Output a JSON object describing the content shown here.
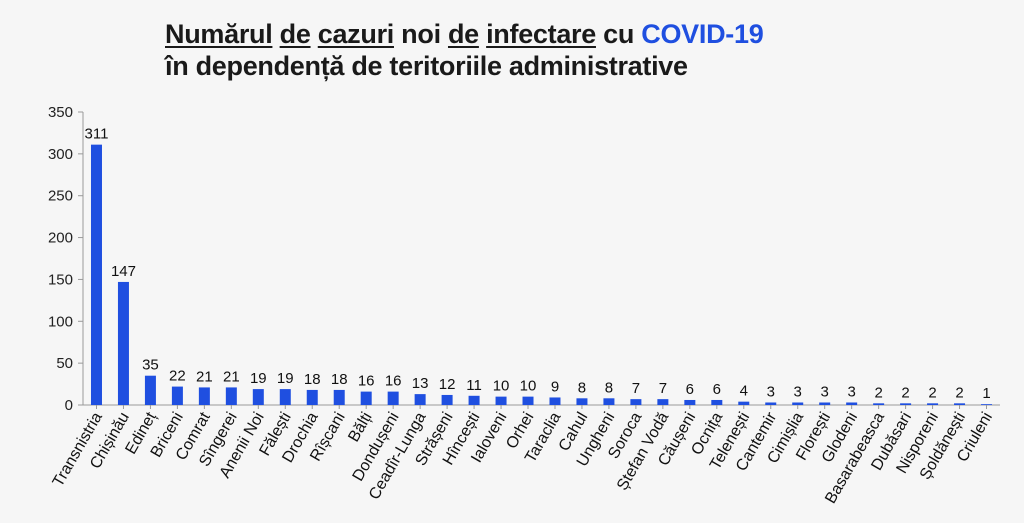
{
  "chart_data": {
    "type": "bar",
    "title_line1_plain1": "",
    "title_line1_u1": "Numărul",
    "title_line1_sp1": " ",
    "title_line1_u2": "de",
    "title_line1_sp2": " ",
    "title_line1_u3": "cazuri",
    "title_line1_sp3": " noi ",
    "title_line1_u4": "de",
    "title_line1_sp4": " ",
    "title_line1_u5": "infectare",
    "title_line1_sp5": " cu ",
    "title_line1_hl": "COVID-19",
    "title_line2": "în dependență de teritoriile administrative",
    "ylim": [
      0,
      350
    ],
    "yticks": [
      0,
      50,
      100,
      150,
      200,
      250,
      300,
      350
    ],
    "grid": false,
    "categories": [
      "Transnistria",
      "Chișinău",
      "Edineț",
      "Briceni",
      "Comrat",
      "Sîngerei",
      "Anenii Noi",
      "Fălești",
      "Drochia",
      "Rîșcani",
      "Bălți",
      "Dondușeni",
      "Ceadîr-Lunga",
      "Strășeni",
      "Hîncești",
      "Ialoveni",
      "Orhei",
      "Taraclia",
      "Cahul",
      "Ungheni",
      "Soroca",
      "Ștefan Vodă",
      "Căușeni",
      "Ocnița",
      "Telenești",
      "Cantemir",
      "Cimișlia",
      "Florești",
      "Glodeni",
      "Basarabeasca",
      "Dubăsari",
      "Nisporeni",
      "Șoldănești",
      "Criuleni"
    ],
    "values": [
      311,
      147,
      35,
      22,
      21,
      21,
      19,
      19,
      18,
      18,
      16,
      16,
      13,
      12,
      11,
      10,
      10,
      9,
      8,
      8,
      7,
      7,
      6,
      6,
      4,
      3,
      3,
      3,
      3,
      2,
      2,
      2,
      2,
      1
    ],
    "colors": {
      "bar": "#1f4fe0",
      "axis": "#999999",
      "text": "#111111"
    }
  }
}
